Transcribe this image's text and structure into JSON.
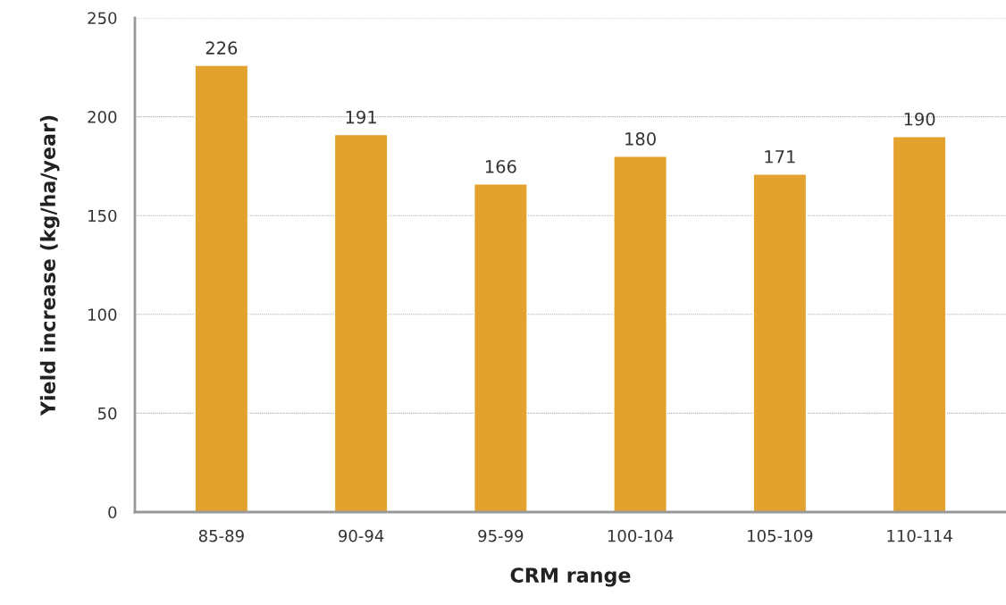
{
  "chart_data": {
    "type": "bar",
    "xlabel": "CRM range",
    "ylabel": "Yield increase (kg/ha/year)",
    "categories": [
      "85-89",
      "90-94",
      "95-99",
      "100-104",
      "105-109",
      "110-114"
    ],
    "values": [
      226,
      191,
      166,
      180,
      171,
      190
    ],
    "color": "#e3a22e",
    "ylim": [
      0,
      250
    ],
    "yticks": [
      0,
      50,
      100,
      150,
      200,
      250
    ],
    "grid": "y",
    "data_labels": true
  }
}
